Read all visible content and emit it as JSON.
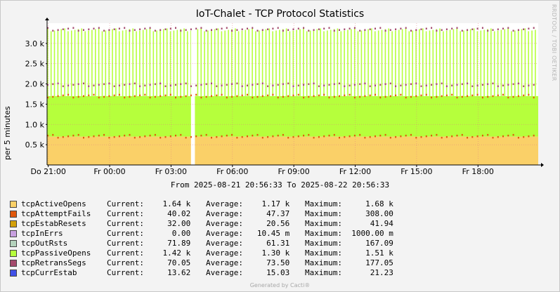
{
  "title": "IoT-Chalet - TCP Protocol Statistics",
  "vendor_text": "RRDTOOL / TOBI OETIKER",
  "footer": "Generated by Cacti®",
  "date_range": "From 2025-08-21 20:56:33 To 2025-08-22 20:56:33",
  "chart_data": {
    "type": "area",
    "title": "IoT-Chalet - TCP Protocol Statistics",
    "ylabel": "per 5 minutes",
    "xlabel": "",
    "ylim": [
      0,
      3500
    ],
    "y_ticks": [
      {
        "value": 500,
        "label": "0.5 k"
      },
      {
        "value": 1000,
        "label": "1.0 k"
      },
      {
        "value": 1500,
        "label": "1.5 k"
      },
      {
        "value": 2000,
        "label": "2.0 k"
      },
      {
        "value": 2500,
        "label": "2.5 k"
      },
      {
        "value": 3000,
        "label": "3.0 k"
      }
    ],
    "x_ticks": [
      "Do 21:00",
      "Fr 00:00",
      "Fr 03:00",
      "Fr 06:00",
      "Fr 09:00",
      "Fr 12:00",
      "Fr 15:00",
      "Fr 18:00"
    ],
    "x_range": [
      "2025-08-21 20:56:33",
      "2025-08-22 20:56:33"
    ],
    "grid": true,
    "legend_position": "bottom",
    "stack_levels": {
      "tcpActiveOpens": 700,
      "tcpPassiveOpens_top": 1700,
      "peak_top": 3370
    },
    "series": [
      {
        "name": "tcpActiveOpens",
        "color": "#fad068",
        "current": "1.64 k",
        "average": "1.17 k",
        "maximum": "1.68 k"
      },
      {
        "name": "tcpAttemptFails",
        "color": "#e0580c",
        "current": "40.02",
        "average": "47.37",
        "maximum": "308.00"
      },
      {
        "name": "tcpEstabResets",
        "color": "#d3a00a",
        "current": "32.00",
        "average": "20.56",
        "maximum": "41.94"
      },
      {
        "name": "tcpInErrs",
        "color": "#c8a0e0",
        "current": "0.00",
        "average": "10.45 m",
        "maximum": "1000.00 m"
      },
      {
        "name": "tcpOutRsts",
        "color": "#b4d2bc",
        "current": "71.89",
        "average": "61.31",
        "maximum": "167.09"
      },
      {
        "name": "tcpPassiveOpens",
        "color": "#b6ff3c",
        "current": "1.42 k",
        "average": "1.30 k",
        "maximum": "1.51 k"
      },
      {
        "name": "tcpRetransSegs",
        "color": "#a44a6c",
        "current": "70.05",
        "average": "73.50",
        "maximum": "177.05"
      },
      {
        "name": "tcpCurrEstab",
        "color": "#4050e8",
        "current": "13.62",
        "average": "15.03",
        "maximum": "21.23"
      }
    ]
  },
  "legend_labels": {
    "current": "Current:",
    "average": "Average:",
    "maximum": "Maximum:"
  }
}
